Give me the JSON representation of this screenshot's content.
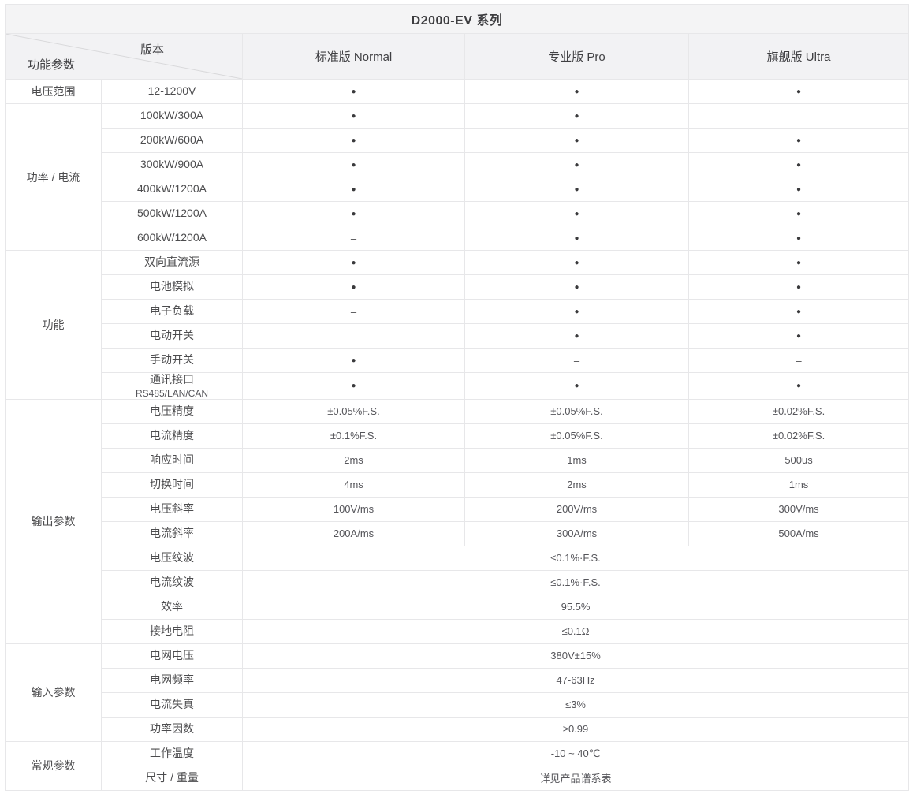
{
  "title": "D2000-EV 系列",
  "header": {
    "corner_top": "版本",
    "corner_bottom": "功能参数",
    "columns": [
      "标准版 Normal",
      "专业版 Pro",
      "旗舰版 Ultra"
    ]
  },
  "symbols": {
    "supported": "●",
    "unsupported": "–"
  },
  "colors": {
    "header_bg": "#f2f2f4",
    "title_bg": "#f4f4f5",
    "border": "#e7e7e9",
    "text": "#4c4c4e"
  },
  "sections": [
    {
      "category": "电压范围",
      "rows": [
        {
          "param": "12-1200V",
          "values": [
            "●",
            "●",
            "●"
          ]
        }
      ]
    },
    {
      "category": "功率 / 电流",
      "rows": [
        {
          "param": "100kW/300A",
          "values": [
            "●",
            "●",
            "–"
          ]
        },
        {
          "param": "200kW/600A",
          "values": [
            "●",
            "●",
            "●"
          ]
        },
        {
          "param": "300kW/900A",
          "values": [
            "●",
            "●",
            "●"
          ]
        },
        {
          "param": "400kW/1200A",
          "values": [
            "●",
            "●",
            "●"
          ]
        },
        {
          "param": "500kW/1200A",
          "values": [
            "●",
            "●",
            "●"
          ]
        },
        {
          "param": "600kW/1200A",
          "values": [
            "–",
            "●",
            "●"
          ]
        }
      ]
    },
    {
      "category": "功能",
      "rows": [
        {
          "param": "双向直流源",
          "values": [
            "●",
            "●",
            "●"
          ]
        },
        {
          "param": "电池模拟",
          "values": [
            "●",
            "●",
            "●"
          ]
        },
        {
          "param": "电子负载",
          "values": [
            "–",
            "●",
            "●"
          ]
        },
        {
          "param": "电动开关",
          "values": [
            "–",
            "●",
            "●"
          ]
        },
        {
          "param": "手动开关",
          "values": [
            "●",
            "–",
            "–"
          ]
        },
        {
          "param": "通讯接口",
          "sub": "RS485/LAN/CAN",
          "values": [
            "●",
            "●",
            "●"
          ]
        }
      ]
    },
    {
      "category": "输出参数",
      "rows": [
        {
          "param": "电压精度",
          "values": [
            "±0.05%F.S.",
            "±0.05%F.S.",
            "±0.02%F.S."
          ]
        },
        {
          "param": "电流精度",
          "values": [
            "±0.1%F.S.",
            "±0.05%F.S.",
            "±0.02%F.S."
          ]
        },
        {
          "param": "响应时间",
          "values": [
            "2ms",
            "1ms",
            "500us"
          ]
        },
        {
          "param": "切换时间",
          "values": [
            "4ms",
            "2ms",
            "1ms"
          ]
        },
        {
          "param": "电压斜率",
          "values": [
            "100V/ms",
            "200V/ms",
            "300V/ms"
          ]
        },
        {
          "param": "电流斜率",
          "values": [
            "200A/ms",
            "300A/ms",
            "500A/ms"
          ]
        },
        {
          "param": "电压纹波",
          "span_value": "≤0.1%·F.S."
        },
        {
          "param": "电流纹波",
          "span_value": "≤0.1%·F.S."
        },
        {
          "param": "效率",
          "span_value": "95.5%"
        },
        {
          "param": "接地电阻",
          "span_value": "≤0.1Ω"
        }
      ]
    },
    {
      "category": "输入参数",
      "rows": [
        {
          "param": "电网电压",
          "span_value": "380V±15%"
        },
        {
          "param": "电网频率",
          "span_value": "47-63Hz"
        },
        {
          "param": "电流失真",
          "span_value": "≤3%"
        },
        {
          "param": "功率因数",
          "span_value": "≥0.99"
        }
      ]
    },
    {
      "category": "常规参数",
      "rows": [
        {
          "param": "工作温度",
          "span_value": "-10 ~ 40℃"
        },
        {
          "param": "尺寸 / 重量",
          "span_value": "详见产品谱系表"
        }
      ]
    }
  ]
}
